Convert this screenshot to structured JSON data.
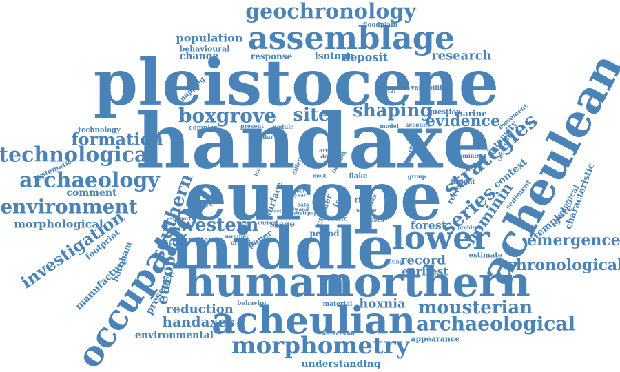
{
  "accent_color": "#4a83b8",
  "words": [
    "handaxe",
    "europe",
    "pleistocene",
    "middle",
    "acheulean",
    "human",
    "northern",
    "acheulian",
    "occupation",
    "assemblage",
    "lower",
    "geochronology",
    "morphometry",
    "archaeological",
    "boxgrove",
    "technological",
    "archaeology",
    "environment",
    "mousterian",
    "strategies",
    "shaping",
    "evidence",
    "site",
    "formation",
    "investigation",
    "southern",
    "western",
    "european",
    "chronological",
    "emergence",
    "series",
    "hominin",
    "reduction",
    "handaxes",
    "hoxnia",
    "record",
    "earliest",
    "research",
    "population",
    "deposit",
    "isotope",
    "change",
    "response",
    "comment",
    "morphological",
    "environmental",
    "understanding",
    "appearance",
    "forest",
    "characteristic",
    "template",
    "context",
    "intensity",
    "marine",
    "question",
    "presence",
    "manufacture",
    "barnham",
    "footprint",
    "behavioural",
    "floodplain",
    "variability",
    "mental",
    "knapping",
    "technology",
    "systematic",
    "complex",
    "present",
    "nodule",
    "similar",
    "model",
    "account",
    "movement",
    "constraint",
    "hominins",
    "suffolk",
    "norfolk",
    "date",
    "area",
    "group",
    "insight",
    "sediment",
    "geological",
    "recent",
    "flake",
    "river",
    "fossil",
    "cromer",
    "lithic",
    "shape",
    "sussex",
    "period",
    "paper",
    "stage",
    "current",
    "organic",
    "number",
    "pattern",
    "fringe",
    "support",
    "surface",
    "problem",
    "estimate",
    "dating",
    "behavior",
    "material",
    "antecessor",
    "blank",
    "different",
    "most",
    "foot",
    "year",
    "core",
    "data",
    "sand",
    "range",
    "stratigraphy",
    "before",
    "mode",
    "using"
  ]
}
